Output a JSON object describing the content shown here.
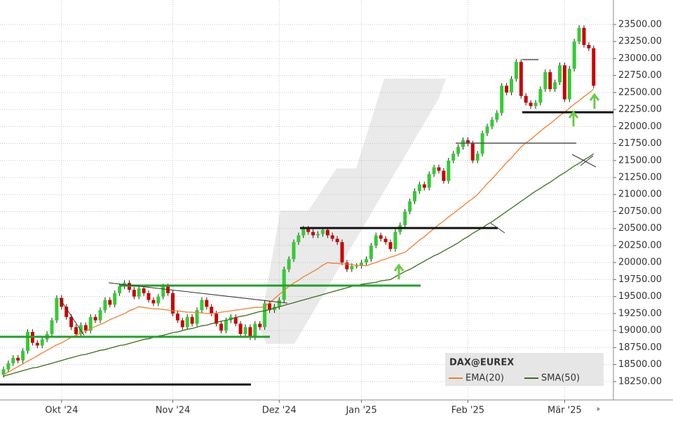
{
  "chart_data": {
    "type": "candlestick",
    "title": "DAX@EUREX",
    "categories": [
      null,
      null,
      null,
      null,
      null,
      null,
      null,
      null,
      null,
      null,
      null,
      null,
      "Okt '24",
      null,
      null,
      null,
      null,
      null,
      null,
      null,
      null,
      null,
      null,
      null,
      null,
      null,
      null,
      null,
      null,
      null,
      null,
      null,
      null,
      null,
      null,
      "Nov '24",
      null,
      null,
      null,
      null,
      null,
      null,
      null,
      null,
      null,
      null,
      null,
      null,
      null,
      null,
      null,
      null,
      null,
      null,
      null,
      null,
      null,
      "Dez '24",
      null,
      null,
      null,
      null,
      null,
      null,
      null,
      null,
      null,
      null,
      null,
      null,
      null,
      null,
      null,
      null,
      "Jan '25",
      null,
      null,
      null,
      null,
      null,
      null,
      null,
      null,
      null,
      null,
      null,
      null,
      null,
      null,
      null,
      null,
      null,
      null,
      null,
      null,
      null,
      "Feb '25",
      null,
      null,
      null,
      null,
      null,
      null,
      null,
      null,
      null,
      null,
      null,
      null,
      null,
      null,
      null,
      null,
      null,
      null,
      null,
      "Mär '25",
      null,
      null,
      null,
      null,
      null,
      null
    ],
    "open": [
      18350,
      18430,
      18520,
      18600,
      18560,
      18700,
      18980,
      18820,
      18780,
      18870,
      18950,
      19150,
      19480,
      19350,
      19200,
      19050,
      18950,
      19080,
      19000,
      19200,
      19150,
      19300,
      19450,
      19380,
      19550,
      19650,
      19700,
      19600,
      19500,
      19620,
      19550,
      19450,
      19400,
      19500,
      19650,
      19550,
      19250,
      19150,
      19050,
      19200,
      19100,
      19300,
      19450,
      19350,
      19250,
      19100,
      19000,
      19150,
      19200,
      19100,
      18950,
      19050,
      18900,
      19100,
      19050,
      19400,
      19300,
      19350,
      19450,
      19900,
      20050,
      20300,
      20400,
      20500,
      20450,
      20400,
      20420,
      20480,
      20400,
      20350,
      20300,
      20000,
      19900,
      19950,
      19950,
      20000,
      20050,
      20250,
      20400,
      20350,
      20300,
      20200,
      20450,
      20550,
      20750,
      20900,
      21050,
      21150,
      21100,
      21300,
      21400,
      21350,
      21200,
      21500,
      21600,
      21700,
      21800,
      21750,
      21500,
      21600,
      21900,
      22000,
      22100,
      22200,
      22600,
      22500,
      22700,
      22950,
      22450,
      22350,
      22300,
      22350,
      22550,
      22800,
      22550,
      22650,
      22900,
      22400,
      22850,
      23250,
      23450,
      23200,
      23150
    ],
    "high": [
      18470,
      18560,
      18640,
      18640,
      18740,
      19020,
      19020,
      18860,
      18910,
      18990,
      19190,
      19520,
      19520,
      19390,
      19240,
      19090,
      19120,
      19120,
      19240,
      19240,
      19340,
      19490,
      19490,
      19590,
      19690,
      19740,
      19740,
      19640,
      19660,
      19660,
      19590,
      19490,
      19540,
      19690,
      19690,
      19590,
      19290,
      19190,
      19240,
      19240,
      19340,
      19490,
      19490,
      19390,
      19290,
      19140,
      19190,
      19240,
      19240,
      19140,
      19090,
      19090,
      19140,
      19140,
      19440,
      19440,
      19390,
      19490,
      19940,
      20090,
      20340,
      20440,
      20540,
      20540,
      20490,
      20460,
      20520,
      20520,
      20440,
      20390,
      20340,
      20040,
      19990,
      19990,
      20040,
      20090,
      20290,
      20440,
      20440,
      20390,
      20340,
      20490,
      20590,
      20790,
      20940,
      21090,
      21190,
      21190,
      21340,
      21440,
      21440,
      21390,
      21540,
      21640,
      21740,
      21840,
      21840,
      21790,
      21640,
      21940,
      22040,
      22140,
      22240,
      22640,
      22640,
      22740,
      22990,
      22990,
      22490,
      22390,
      22390,
      22590,
      22840,
      22840,
      22690,
      22940,
      22940,
      22890,
      23290,
      23490,
      23490,
      23240,
      23190
    ],
    "low": [
      18310,
      18390,
      18480,
      18520,
      18520,
      18660,
      18780,
      18740,
      18740,
      18830,
      18910,
      19110,
      19310,
      19160,
      19010,
      18910,
      18910,
      18960,
      18960,
      19110,
      19110,
      19260,
      19340,
      19340,
      19510,
      19610,
      19560,
      19460,
      19460,
      19510,
      19410,
      19360,
      19360,
      19460,
      19510,
      19210,
      19110,
      19010,
      19010,
      19060,
      19060,
      19260,
      19310,
      19210,
      19060,
      18960,
      18960,
      19110,
      19060,
      18910,
      18910,
      18860,
      18860,
      19010,
      19010,
      19260,
      19260,
      19310,
      19410,
      19860,
      20010,
      20260,
      20360,
      20410,
      20360,
      20360,
      20380,
      20360,
      20310,
      20260,
      19960,
      19860,
      19860,
      19910,
      19910,
      19960,
      20010,
      20210,
      20310,
      20260,
      20160,
      20160,
      20410,
      20510,
      20710,
      20860,
      21010,
      21060,
      21060,
      21260,
      21310,
      21160,
      21160,
      21460,
      21560,
      21660,
      21710,
      21460,
      21460,
      21560,
      21860,
      21960,
      22060,
      22160,
      22460,
      22460,
      22660,
      22410,
      22310,
      22260,
      22260,
      22310,
      22510,
      22510,
      22510,
      22610,
      22360,
      22360,
      22810,
      23210,
      23160,
      23110,
      22560
    ],
    "close": [
      18430,
      18520,
      18600,
      18560,
      18700,
      18980,
      18820,
      18780,
      18870,
      18950,
      19150,
      19480,
      19350,
      19200,
      19050,
      18950,
      19080,
      19000,
      19200,
      19150,
      19300,
      19450,
      19380,
      19550,
      19650,
      19700,
      19600,
      19500,
      19620,
      19550,
      19450,
      19400,
      19500,
      19650,
      19550,
      19250,
      19150,
      19050,
      19200,
      19100,
      19300,
      19450,
      19350,
      19250,
      19100,
      19000,
      19150,
      19200,
      19100,
      18950,
      19050,
      18900,
      19100,
      19050,
      19400,
      19300,
      19350,
      19450,
      19900,
      20050,
      20300,
      20400,
      20500,
      20450,
      20400,
      20420,
      20480,
      20400,
      20350,
      20300,
      20000,
      19900,
      19950,
      19950,
      20000,
      20050,
      20250,
      20400,
      20350,
      20300,
      20200,
      20450,
      20550,
      20750,
      20900,
      21050,
      21150,
      21100,
      21300,
      21400,
      21350,
      21200,
      21500,
      21600,
      21700,
      21800,
      21750,
      21500,
      21600,
      21900,
      22000,
      22100,
      22200,
      22600,
      22500,
      22700,
      22950,
      22450,
      22350,
      22300,
      22350,
      22550,
      22800,
      22550,
      22650,
      22900,
      22400,
      22850,
      23250,
      23450,
      23200,
      23150,
      22600
    ],
    "up_color": "#33cc33",
    "down_color": "#cc0000",
    "lines": [
      {
        "name": "EMA(20)",
        "color": "#f07f2c",
        "values": [
          18350,
          18390,
          18430,
          18470,
          18510,
          18550,
          18590,
          18630,
          18670,
          18710,
          18750,
          18790,
          18820,
          18860,
          18900,
          18930,
          18960,
          18990,
          19030,
          19060,
          19090,
          19120,
          19160,
          19190,
          19220,
          19250,
          19290,
          19320,
          19350,
          19340,
          19330,
          19320,
          19320,
          19310,
          19300,
          19290,
          19290,
          19280,
          19270,
          19270,
          19260,
          19260,
          19250,
          19250,
          19260,
          19270,
          19280,
          19290,
          19300,
          19310,
          19320,
          19330,
          19340,
          19340,
          19350,
          19410,
          19470,
          19530,
          19590,
          19650,
          19700,
          19740,
          19790,
          19830,
          19870,
          19910,
          19960,
          20000,
          19990,
          19990,
          19980,
          19980,
          19970,
          19960,
          19960,
          19950,
          19980,
          20000,
          20030,
          20050,
          20080,
          20100,
          20130,
          20150,
          20210,
          20270,
          20330,
          20380,
          20440,
          20500,
          20560,
          20610,
          20670,
          20720,
          20780,
          20830,
          20890,
          20940,
          21000,
          21080,
          21160,
          21230,
          21310,
          21390,
          21470,
          21540,
          21620,
          21700,
          21760,
          21810,
          21870,
          21930,
          21990,
          22040,
          22100,
          22160,
          22210,
          22270,
          22330,
          22380,
          22440,
          22490,
          22550
        ]
      },
      {
        "name": "SMA(50)",
        "color": "#3b6e1a",
        "values": [
          18330,
          18350,
          18370,
          18390,
          18410,
          18430,
          18450,
          18460,
          18480,
          18500,
          18520,
          18540,
          18560,
          18580,
          18600,
          18620,
          18640,
          18650,
          18670,
          18690,
          18710,
          18720,
          18740,
          18760,
          18780,
          18790,
          18810,
          18830,
          18850,
          18870,
          18880,
          18900,
          18920,
          18930,
          18950,
          18970,
          18980,
          19000,
          19020,
          19030,
          19050,
          19070,
          19080,
          19100,
          19120,
          19140,
          19150,
          19170,
          19190,
          19210,
          19220,
          19240,
          19260,
          19280,
          19290,
          19310,
          19330,
          19350,
          19370,
          19390,
          19410,
          19430,
          19450,
          19470,
          19490,
          19510,
          19530,
          19550,
          19570,
          19590,
          19610,
          19630,
          19650,
          19660,
          19680,
          19690,
          19700,
          19710,
          19730,
          19740,
          19750,
          19790,
          19830,
          19870,
          19900,
          19940,
          19980,
          20020,
          20060,
          20100,
          20130,
          20170,
          20210,
          20250,
          20290,
          20340,
          20380,
          20430,
          20470,
          20510,
          20560,
          20600,
          20650,
          20700,
          20750,
          20800,
          20850,
          20900,
          20950,
          21000,
          21050,
          21090,
          21140,
          21180,
          21230,
          21280,
          21320,
          21370,
          21420,
          21460,
          21510,
          21550,
          21600
        ]
      }
    ],
    "ylim": [
      17980,
      23860
    ],
    "yticks": [
      {
        "value": 18250,
        "label": "18250.00"
      },
      {
        "value": 18500,
        "label": "18500.00"
      },
      {
        "value": 18750,
        "label": "18750.00"
      },
      {
        "value": 19000,
        "label": "19000.00"
      },
      {
        "value": 19250,
        "label": "19250.00"
      },
      {
        "value": 19500,
        "label": "19500.00"
      },
      {
        "value": 19750,
        "label": "19750.00"
      },
      {
        "value": 20000,
        "label": "20000.00"
      },
      {
        "value": 20250,
        "label": "20250.00"
      },
      {
        "value": 20500,
        "label": "20500.00"
      },
      {
        "value": 20750,
        "label": "20750.00"
      },
      {
        "value": 21000,
        "label": "21000.00"
      },
      {
        "value": 21250,
        "label": "21250.00"
      },
      {
        "value": 21500,
        "label": "21500.00"
      },
      {
        "value": 21750,
        "label": "21750.00"
      },
      {
        "value": 22000,
        "label": "22000.00"
      },
      {
        "value": 22250,
        "label": "22250.00"
      },
      {
        "value": 22500,
        "label": "22500.00"
      },
      {
        "value": 22750,
        "label": "22750.00"
      },
      {
        "value": 23000,
        "label": "23000.00"
      },
      {
        "value": 23250,
        "label": "23250.00"
      },
      {
        "value": 23500,
        "label": "23500.00"
      }
    ],
    "grid": true
  }
}
